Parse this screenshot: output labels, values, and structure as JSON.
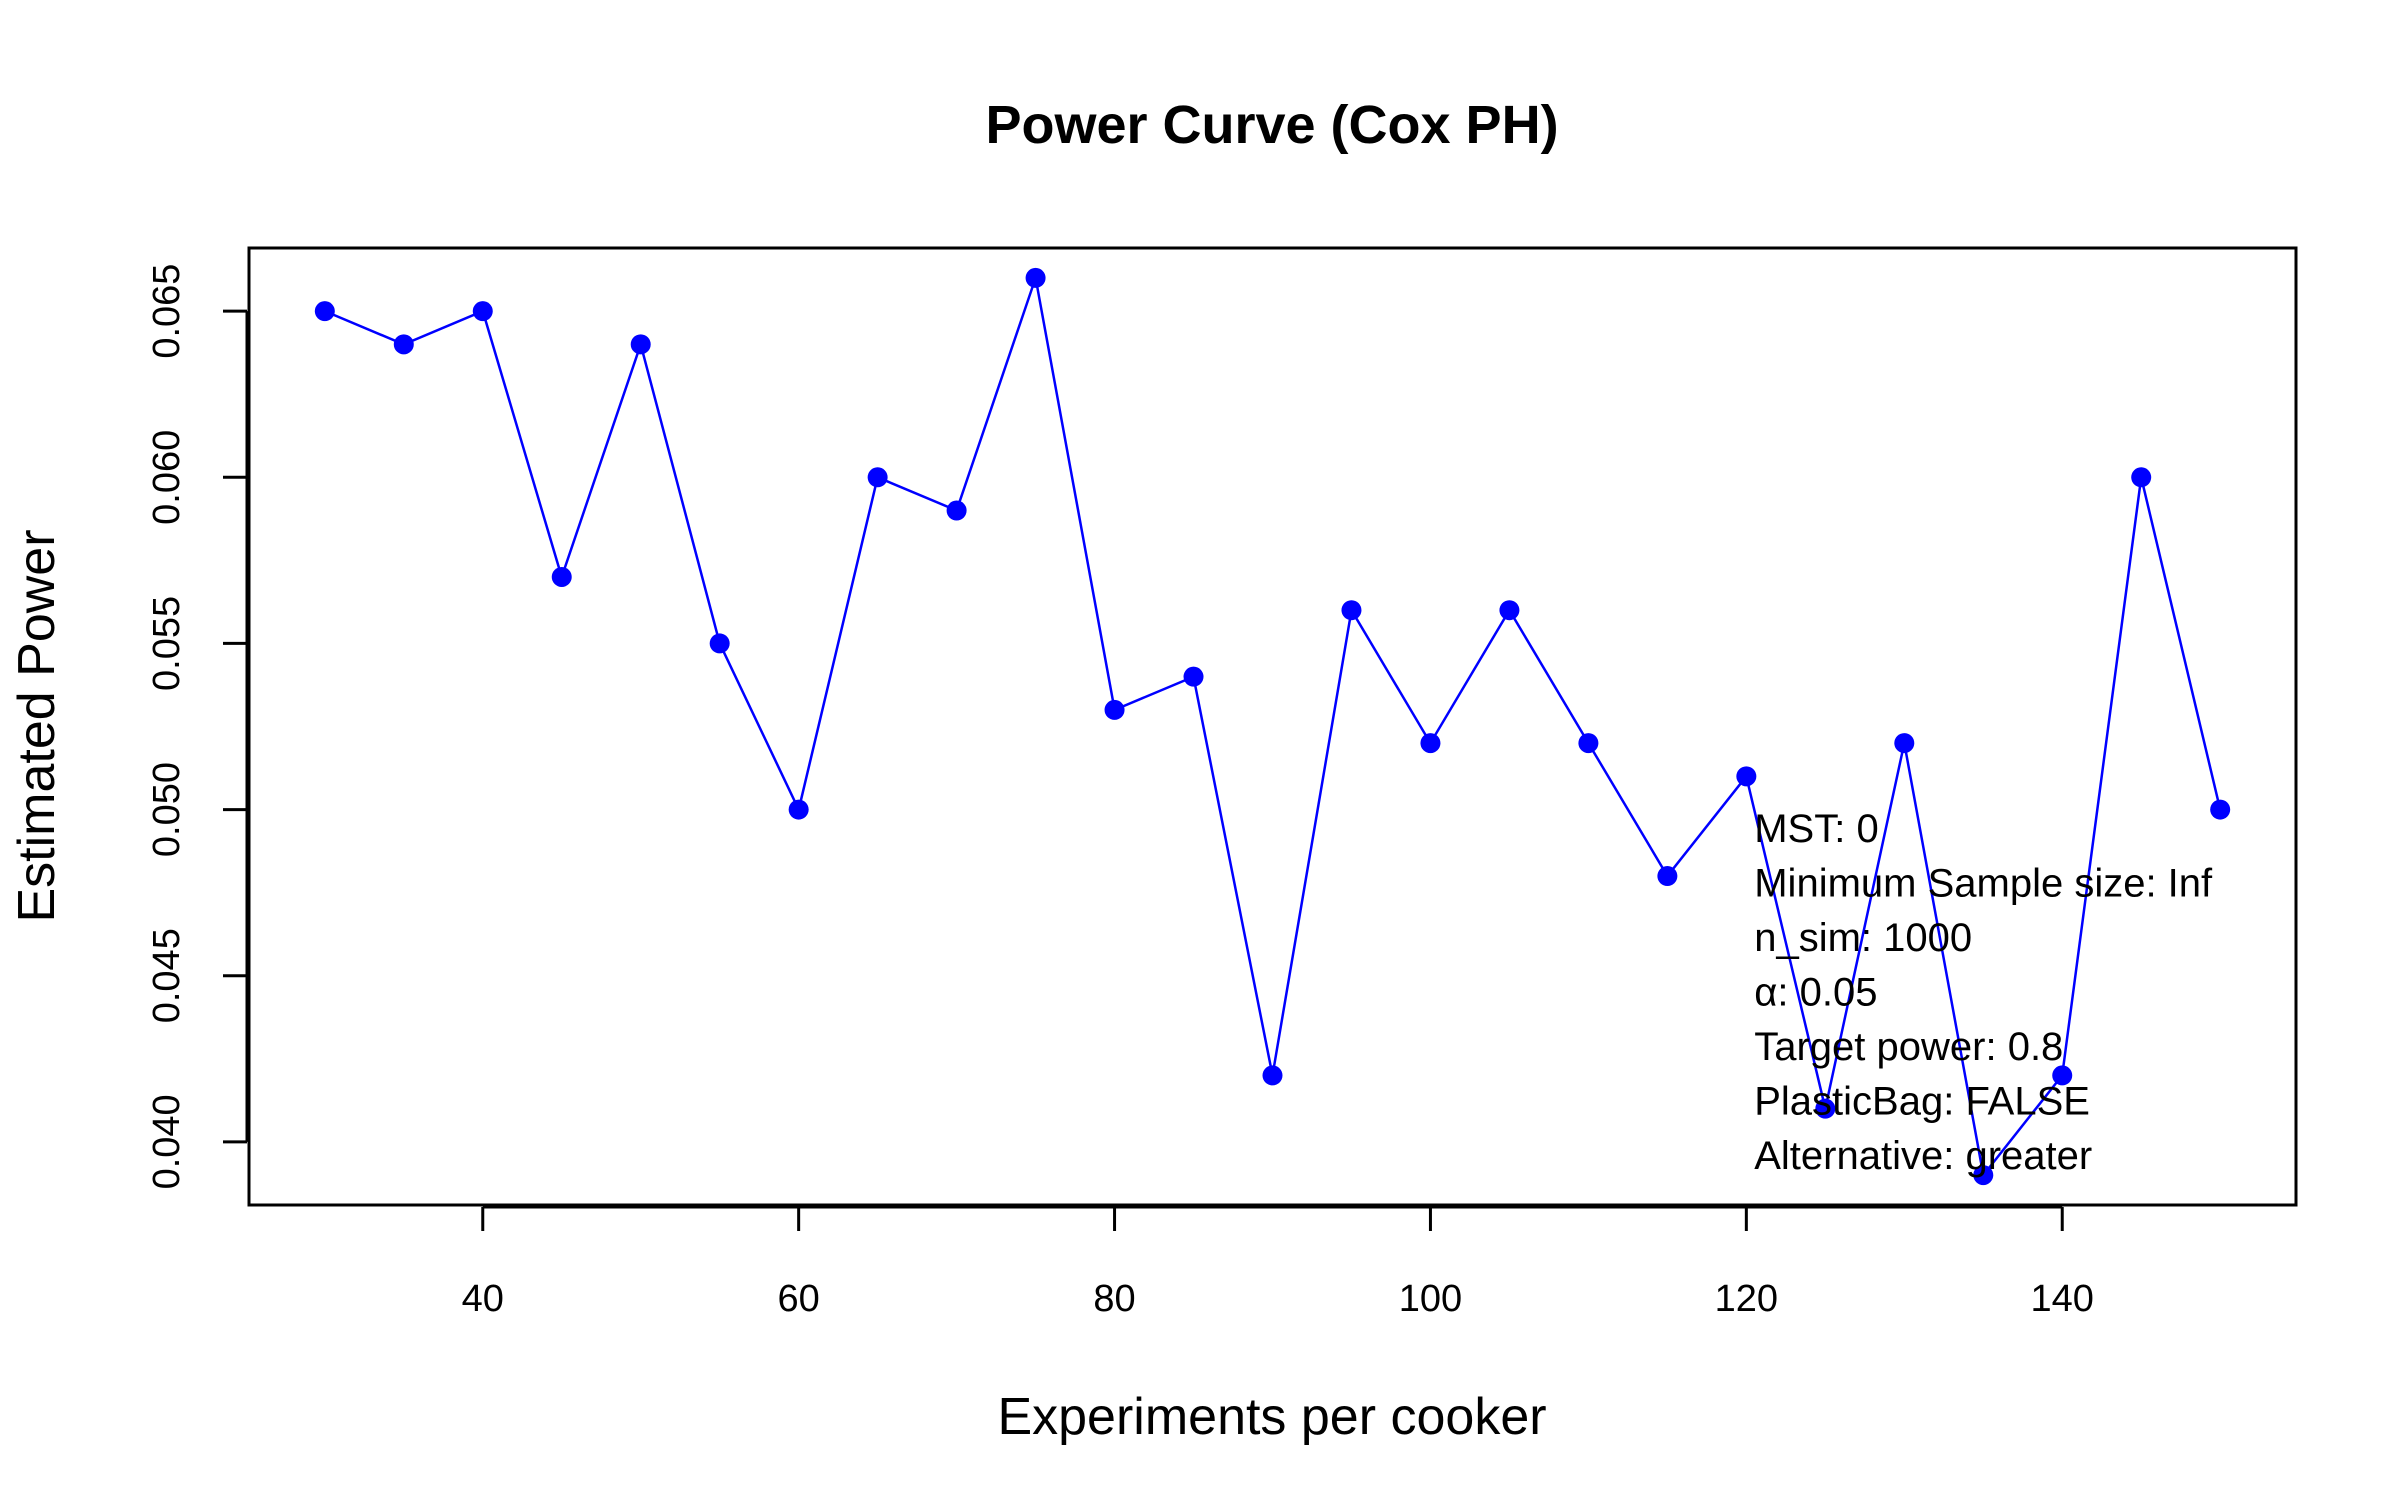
{
  "chart_data": {
    "type": "line",
    "title": "Power Curve (Cox PH)",
    "xlabel": "Experiments per cooker",
    "ylabel": "Estimated Power",
    "xlim": [
      25.2,
      154.8
    ],
    "ylim": [
      0.0381,
      0.0669
    ],
    "x_ticks": [
      40,
      60,
      80,
      100,
      120,
      140
    ],
    "x_tick_labels": [
      "40",
      "60",
      "80",
      "100",
      "120",
      "140"
    ],
    "y_ticks": [
      0.04,
      0.045,
      0.05,
      0.055,
      0.06,
      0.065
    ],
    "y_tick_labels": [
      "0.040",
      "0.045",
      "0.050",
      "0.055",
      "0.060",
      "0.065"
    ],
    "grid": false,
    "series": [
      {
        "color": "#0000ff",
        "x": [
          30,
          35,
          40,
          45,
          50,
          55,
          60,
          65,
          70,
          75,
          80,
          85,
          90,
          95,
          100,
          105,
          110,
          115,
          120,
          125,
          130,
          135,
          140,
          145,
          150
        ],
        "y": [
          0.065,
          0.064,
          0.065,
          0.057,
          0.064,
          0.055,
          0.05,
          0.06,
          0.059,
          0.066,
          0.053,
          0.054,
          0.042,
          0.056,
          0.052,
          0.056,
          0.052,
          0.048,
          0.051,
          0.041,
          0.052,
          0.039,
          0.042,
          0.06,
          0.05
        ]
      }
    ],
    "annotations": [
      "MST: 0",
      "Minimum Sample size: Inf",
      "n_sim: 1000",
      "α: 0.05",
      "Target power: 0.8",
      "PlasticBag: FALSE",
      "Alternative: greater"
    ],
    "annotation_placement": "bottom-right"
  }
}
